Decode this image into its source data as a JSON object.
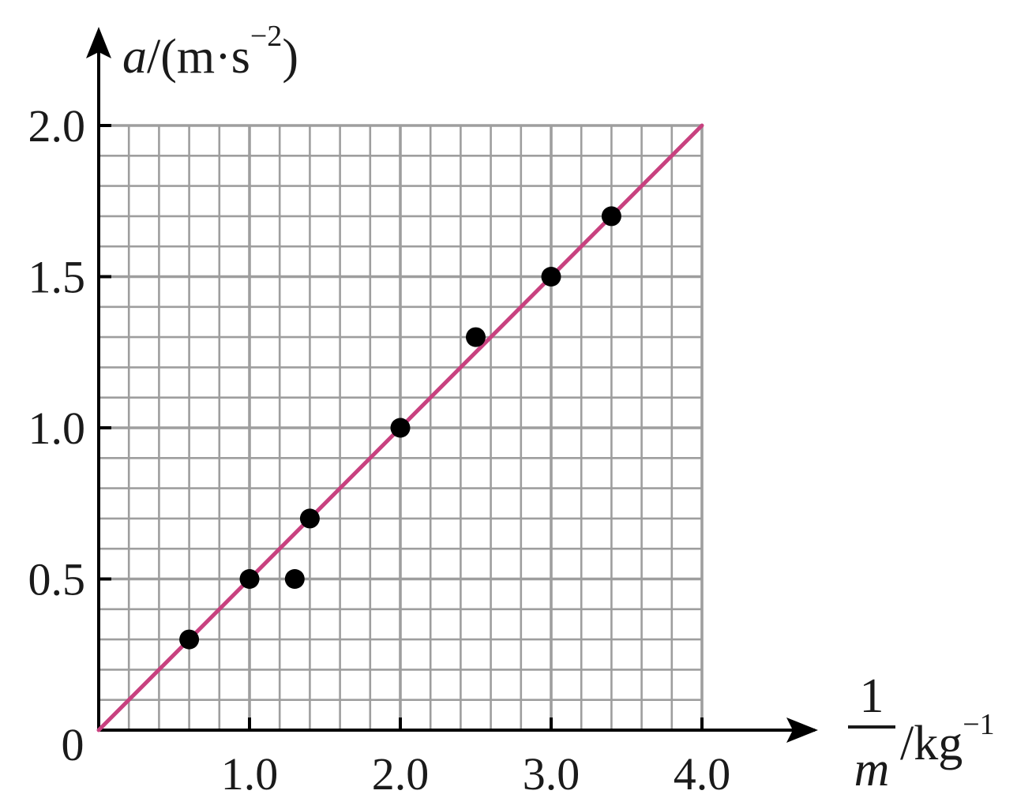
{
  "chart_data": {
    "type": "scatter",
    "x_axis": {
      "label_numerator": "1",
      "label_denominator": "m",
      "label_unit": "/kg",
      "label_unit_exponent": "−1",
      "range": [
        0,
        4.0
      ],
      "major_step": 1.0,
      "minor_step": 0.2,
      "tick_labels": [
        "1.0",
        "2.0",
        "3.0",
        "4.0"
      ]
    },
    "y_axis": {
      "label_var": "a",
      "label_unit": "/(m·s",
      "label_unit_exponent": "−2",
      "label_close": ")",
      "range": [
        0,
        2.0
      ],
      "major_step": 0.5,
      "minor_step": 0.1,
      "tick_labels": [
        "0.5",
        "1.0",
        "1.5",
        "2.0"
      ]
    },
    "origin_label": "0",
    "grid": true,
    "points": [
      {
        "x": 0.6,
        "y": 0.3
      },
      {
        "x": 1.0,
        "y": 0.5
      },
      {
        "x": 1.3,
        "y": 0.5
      },
      {
        "x": 1.4,
        "y": 0.7
      },
      {
        "x": 2.0,
        "y": 1.0
      },
      {
        "x": 2.5,
        "y": 1.3
      },
      {
        "x": 3.0,
        "y": 1.5
      },
      {
        "x": 3.4,
        "y": 1.7
      }
    ],
    "fit_line": {
      "x": [
        0,
        4.0
      ],
      "y": [
        0,
        2.0
      ]
    },
    "colors": {
      "fit_line": "#c8417f",
      "points": "#000000",
      "grid": "#9e9e9e",
      "axes": "#000000"
    }
  }
}
